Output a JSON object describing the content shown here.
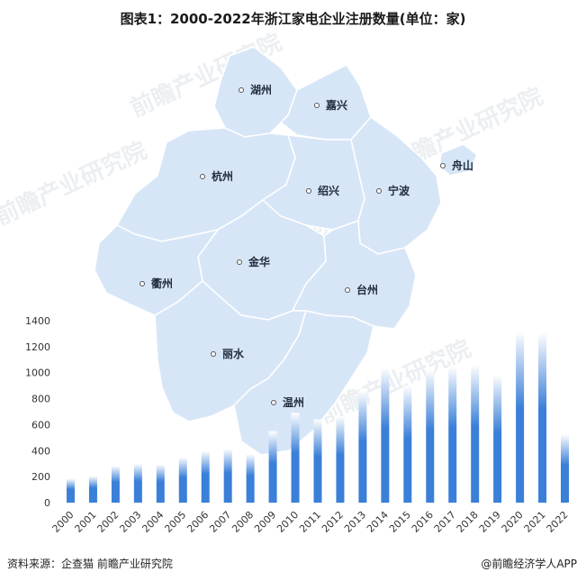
{
  "title": "图表1：2000-2022年浙江家电企业注册数量(单位：家)",
  "footer": {
    "source": "资料来源：企查猫 前瞻产业研究院",
    "brand": "@前瞻经济学人APP"
  },
  "watermark_text": "前瞻产业研究院",
  "map": {
    "fill_color": "#d7e6f7",
    "border_color": "#ffffff",
    "cities": [
      "湖州",
      "嘉兴",
      "杭州",
      "舟山",
      "绍兴",
      "宁波",
      "金华",
      "衢州",
      "台州",
      "丽水",
      "温州"
    ]
  },
  "chart_data": {
    "type": "bar",
    "categories": [
      "2000",
      "2001",
      "2002",
      "2003",
      "2004",
      "2005",
      "2006",
      "2007",
      "2008",
      "2009",
      "2010",
      "2011",
      "2012",
      "2013",
      "2014",
      "2015",
      "2016",
      "2017",
      "2018",
      "2019",
      "2020",
      "2021",
      "2022"
    ],
    "values": [
      185,
      205,
      285,
      300,
      295,
      350,
      400,
      415,
      375,
      550,
      690,
      640,
      665,
      860,
      1040,
      900,
      1020,
      1050,
      1060,
      985,
      1320,
      1310,
      525
    ],
    "ylim": [
      0,
      1400
    ],
    "yticks": [
      0,
      200,
      400,
      600,
      800,
      1000,
      1200,
      1400
    ],
    "bar_color": "#3a7fd8",
    "bar_fade_color": "#ffffff",
    "grid": false,
    "legend": "none"
  }
}
